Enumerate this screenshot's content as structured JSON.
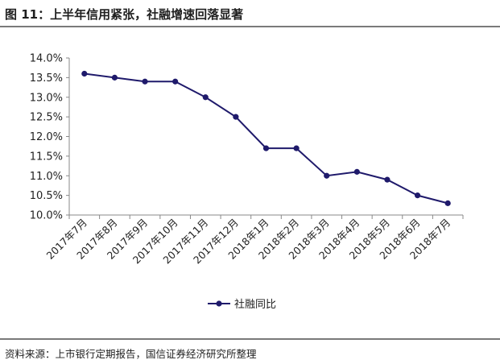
{
  "header": {
    "title": "图 11：上半年信用紧张，社融增速回落显著"
  },
  "footer": {
    "source": "资料来源：上市银行定期报告，国信证券经济研究所整理"
  },
  "chart_data": {
    "type": "line",
    "title": "图 11：上半年信用紧张，社融增速回落显著",
    "xlabel": "",
    "ylabel": "",
    "categories": [
      "2017年7月",
      "2017年8月",
      "2017年9月",
      "2017年10月",
      "2017年11月",
      "2017年12月",
      "2018年1月",
      "2018年2月",
      "2018年3月",
      "2018年4月",
      "2018年5月",
      "2018年6月",
      "2018年7月"
    ],
    "series": [
      {
        "name": "社融同比",
        "values": [
          13.6,
          13.5,
          13.4,
          13.4,
          13.0,
          12.5,
          11.7,
          11.7,
          11.0,
          11.1,
          10.9,
          10.5,
          10.3
        ]
      }
    ],
    "ylim": [
      10.0,
      14.0
    ],
    "yticks": [
      "10.0%",
      "10.5%",
      "11.0%",
      "11.5%",
      "12.0%",
      "12.5%",
      "13.0%",
      "13.5%",
      "14.0%"
    ],
    "grid": false,
    "legend_position": "bottom",
    "colors": {
      "series": "#1f1a6b",
      "axis": "#888888",
      "text": "#222222"
    }
  }
}
